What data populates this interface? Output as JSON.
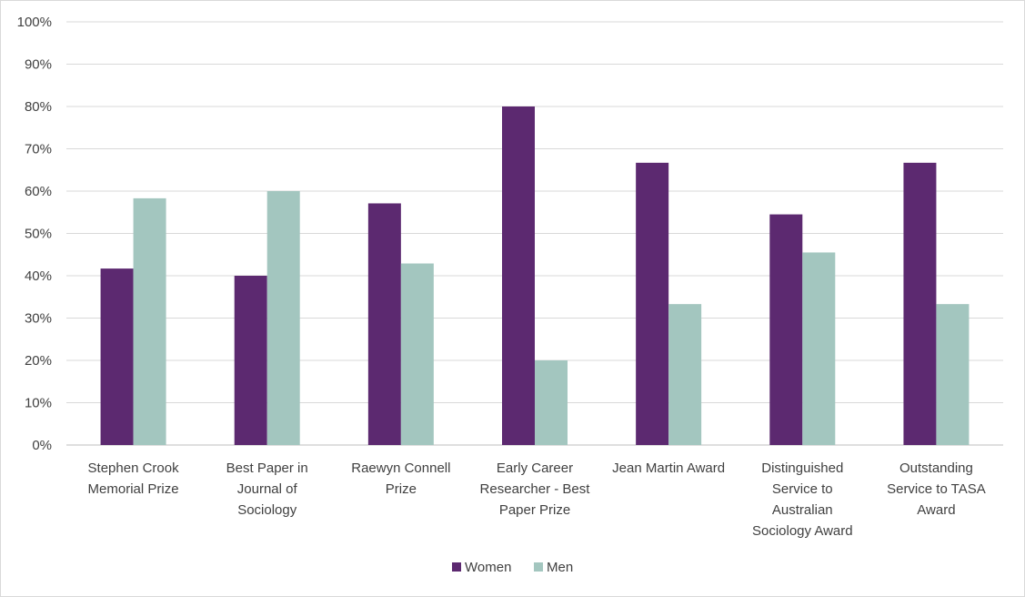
{
  "chart_data": {
    "type": "bar",
    "title": "",
    "xlabel": "",
    "ylabel": "",
    "ylim": [
      0,
      100
    ],
    "y_ticks": [
      "0%",
      "10%",
      "20%",
      "30%",
      "40%",
      "50%",
      "60%",
      "70%",
      "80%",
      "90%",
      "100%"
    ],
    "grid": true,
    "legend_position": "bottom",
    "categories": [
      [
        "Stephen Crook",
        "Memorial Prize"
      ],
      [
        "Best Paper in",
        "Journal of",
        "Sociology"
      ],
      [
        "Raewyn Connell",
        "Prize"
      ],
      [
        "Early Career",
        "Researcher - Best",
        "Paper Prize"
      ],
      [
        "Jean Martin Award"
      ],
      [
        "Distinguished",
        "Service to",
        "Australian",
        "Sociology Award"
      ],
      [
        "Outstanding",
        "Service to TASA",
        "Award"
      ]
    ],
    "series": [
      {
        "name": "Women",
        "color": "#5c2970",
        "values": [
          41.7,
          40,
          57.1,
          80,
          66.7,
          54.5,
          66.7
        ]
      },
      {
        "name": "Men",
        "color": "#a3c6bf",
        "values": [
          58.3,
          60,
          42.9,
          20,
          33.3,
          45.5,
          33.3
        ]
      }
    ]
  }
}
